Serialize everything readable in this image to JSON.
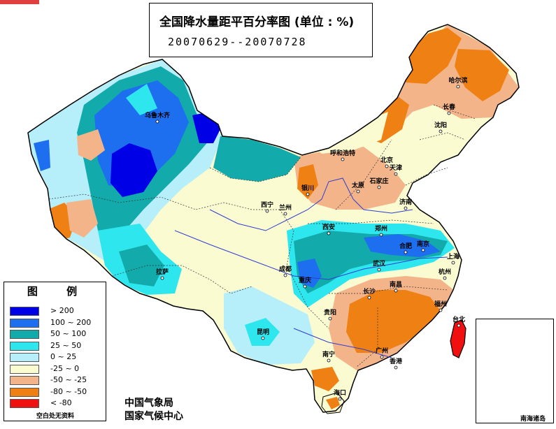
{
  "map": {
    "title": "全国降水量距平百分率图 (单位 : %)",
    "date_range": "20070629--20070728"
  },
  "legend": {
    "title": "图 例",
    "items": [
      {
        "range": "> 200",
        "color": "#0000e6"
      },
      {
        "range": "100 ~ 200",
        "color": "#1e6ef0"
      },
      {
        "range": "50 ~ 100",
        "color": "#12aaaa"
      },
      {
        "range": "25 ~ 50",
        "color": "#2ee6ee"
      },
      {
        "range": "0 ~ 25",
        "color": "#b6eefa"
      },
      {
        "range": "-25 ~ 0",
        "color": "#fbfbd2"
      },
      {
        "range": "-50 ~ -25",
        "color": "#f4b48a"
      },
      {
        "range": "-80 ~ -50",
        "color": "#ee8014"
      },
      {
        "range": "< -80",
        "color": "#f01010"
      }
    ],
    "note": "空白处无资料"
  },
  "agencies": [
    "中国气象局",
    "国家气候中心"
  ],
  "inset_label": "南海诸岛",
  "cities": [
    "乌鲁木齐",
    "哈尔滨",
    "长春",
    "沈阳",
    "呼和浩特",
    "北京",
    "天津",
    "太原",
    "石家庄",
    "济南",
    "银川",
    "西宁",
    "兰州",
    "郑州",
    "西安",
    "合肥",
    "南京",
    "上海",
    "武汉",
    "成都",
    "拉萨",
    "重庆",
    "长沙",
    "南昌",
    "杭州",
    "福州",
    "贵阳",
    "昆明",
    "南宁",
    "广州",
    "香港",
    "台北",
    "海口"
  ]
}
